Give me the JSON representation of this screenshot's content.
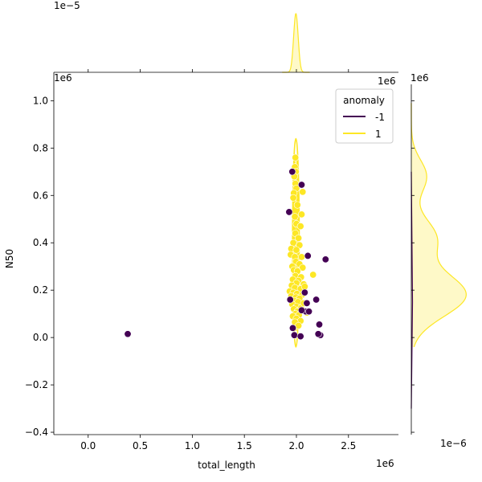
{
  "chart_data": {
    "type": "scatter",
    "xlabel": "total_length",
    "ylabel": "N50",
    "x_offset_text": "1e6",
    "y_offset_text": "1e6",
    "top_marginal_offset_text": "1e−5",
    "right_marginal_offset_text": "1e6",
    "right_marginal_bottom_text": "1e−6",
    "x_unit_multiplier": 1000000,
    "y_unit_multiplier": 1000000,
    "xlim": [
      -330000,
      2980000
    ],
    "ylim": [
      -410000,
      1120000
    ],
    "xticks": [
      0.0,
      0.5,
      1.0,
      1.5,
      2.0,
      2.5
    ],
    "xtick_labels": [
      "0.0",
      "0.5",
      "1.0",
      "1.5",
      "2.0",
      "2.5"
    ],
    "yticks": [
      -0.4,
      -0.2,
      0.0,
      0.2,
      0.4,
      0.6,
      0.8,
      1.0
    ],
    "ytick_labels": [
      "−0.4",
      "−0.2",
      "0.0",
      "0.2",
      "0.4",
      "0.6",
      "0.8",
      "1.0"
    ],
    "grid": false,
    "legend": {
      "title": "anomaly",
      "placement": "upper right",
      "entries": [
        "-1",
        "1"
      ]
    },
    "series": [
      {
        "name": "-1",
        "color": "#440154",
        "points": [
          [
            380000,
            15000
          ],
          [
            1930000,
            530000
          ],
          [
            1960000,
            700000
          ],
          [
            2050000,
            645000
          ],
          [
            1965000,
            40000
          ],
          [
            1980000,
            10000
          ],
          [
            2040000,
            5000
          ],
          [
            2230000,
            10000
          ],
          [
            2220000,
            55000
          ],
          [
            2190000,
            160000
          ],
          [
            2280000,
            330000
          ],
          [
            2110000,
            345000
          ],
          [
            2080000,
            190000
          ],
          [
            2100000,
            145000
          ],
          [
            2090000,
            110000
          ],
          [
            2050000,
            115000
          ],
          [
            1940000,
            160000
          ],
          [
            2120000,
            110000
          ],
          [
            2210000,
            15000
          ]
        ]
      },
      {
        "name": "1",
        "color": "#fde725",
        "points": [
          [
            1990000,
            760000
          ],
          [
            1985000,
            720000
          ],
          [
            1995000,
            700000
          ],
          [
            1980000,
            680000
          ],
          [
            1990000,
            650000
          ],
          [
            2000000,
            630000
          ],
          [
            1975000,
            610000
          ],
          [
            2060000,
            615000
          ],
          [
            1970000,
            590000
          ],
          [
            2010000,
            560000
          ],
          [
            2050000,
            520000
          ],
          [
            1985000,
            510000
          ],
          [
            2000000,
            480000
          ],
          [
            2040000,
            470000
          ],
          [
            1990000,
            440000
          ],
          [
            2020000,
            420000
          ],
          [
            1970000,
            400000
          ],
          [
            2030000,
            390000
          ],
          [
            1950000,
            375000
          ],
          [
            2000000,
            370000
          ],
          [
            1945000,
            350000
          ],
          [
            1985000,
            340000
          ],
          [
            2050000,
            340000
          ],
          [
            1995000,
            320000
          ],
          [
            2030000,
            310000
          ],
          [
            1960000,
            300000
          ],
          [
            2060000,
            295000
          ],
          [
            1975000,
            285000
          ],
          [
            2010000,
            280000
          ],
          [
            2160000,
            265000
          ],
          [
            1990000,
            260000
          ],
          [
            2045000,
            255000
          ],
          [
            1965000,
            245000
          ],
          [
            2020000,
            240000
          ],
          [
            2000000,
            230000
          ],
          [
            2070000,
            225000
          ],
          [
            1955000,
            220000
          ],
          [
            1985000,
            210000
          ],
          [
            2040000,
            205000
          ],
          [
            1935000,
            195000
          ],
          [
            1970000,
            190000
          ],
          [
            2005000,
            185000
          ],
          [
            2055000,
            180000
          ],
          [
            1950000,
            175000
          ],
          [
            1995000,
            170000
          ],
          [
            2030000,
            165000
          ],
          [
            1980000,
            155000
          ],
          [
            2015000,
            150000
          ],
          [
            1960000,
            140000
          ],
          [
            2000000,
            130000
          ],
          [
            2045000,
            125000
          ],
          [
            1975000,
            120000
          ],
          [
            2010000,
            110000
          ],
          [
            1990000,
            100000
          ],
          [
            2025000,
            95000
          ],
          [
            1965000,
            90000
          ],
          [
            2000000,
            80000
          ],
          [
            2040000,
            70000
          ],
          [
            1985000,
            65000
          ],
          [
            2020000,
            50000
          ],
          [
            2100000,
            105000
          ],
          [
            2080000,
            215000
          ],
          [
            2070000,
            145000
          ]
        ]
      }
    ],
    "kde_contours": [
      {
        "series": "1",
        "color": "#fde725",
        "center": [
          1995000,
          400000
        ],
        "radii": [
          [
            32000,
            440000
          ],
          [
            26000,
            370000
          ],
          [
            20000,
            300000
          ],
          [
            14000,
            230000
          ],
          [
            8000,
            160000
          ]
        ]
      }
    ],
    "top_marginal": {
      "series": "1",
      "type": "kde",
      "peak_x": 1995000,
      "spread": 22000
    },
    "right_marginal": {
      "series": "1",
      "type": "kde",
      "peaks": [
        {
          "y": 180000,
          "height": 1.0,
          "width": 90000
        },
        {
          "y": 420000,
          "height": 0.45,
          "width": 80000
        },
        {
          "y": 680000,
          "height": 0.28,
          "width": 70000
        }
      ]
    }
  }
}
